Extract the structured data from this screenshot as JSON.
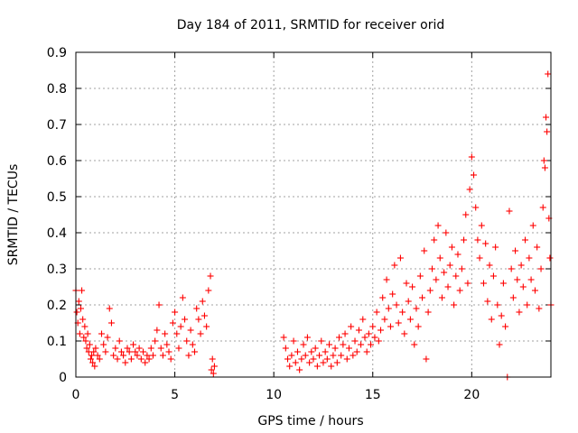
{
  "chart_data": {
    "type": "scatter",
    "title": "Day 184 of 2011, SRMTID for receiver orid",
    "xlabel": "GPS time / hours",
    "ylabel": "SRMTID / TECUs",
    "xlim": [
      0,
      24
    ],
    "ylim": [
      0,
      0.9
    ],
    "x_ticks": [
      0,
      5,
      10,
      15,
      20
    ],
    "y_ticks": [
      0,
      0.1,
      0.2,
      0.3,
      0.4,
      0.5,
      0.6,
      0.7,
      0.8,
      0.9
    ],
    "x_tick_labels": [
      "0",
      "5",
      "10",
      "15",
      "20"
    ],
    "y_tick_labels": [
      "0",
      "0.1",
      "0.2",
      "0.3",
      "0.4",
      "0.5",
      "0.6",
      "0.7",
      "0.8",
      "0.9"
    ],
    "grid": true,
    "marker": "+",
    "color": "#ff0000",
    "series": [
      {
        "name": "SRMTID",
        "points": [
          [
            0.0,
            0.24
          ],
          [
            0.05,
            0.18
          ],
          [
            0.1,
            0.15
          ],
          [
            0.15,
            0.21
          ],
          [
            0.2,
            0.12
          ],
          [
            0.25,
            0.19
          ],
          [
            0.3,
            0.24
          ],
          [
            0.35,
            0.16
          ],
          [
            0.4,
            0.11
          ],
          [
            0.45,
            0.14
          ],
          [
            0.5,
            0.1
          ],
          [
            0.55,
            0.08
          ],
          [
            0.6,
            0.12
          ],
          [
            0.65,
            0.07
          ],
          [
            0.7,
            0.09
          ],
          [
            0.75,
            0.05
          ],
          [
            0.8,
            0.06
          ],
          [
            0.85,
            0.04
          ],
          [
            0.9,
            0.07
          ],
          [
            0.95,
            0.03
          ],
          [
            1.0,
            0.08
          ],
          [
            1.1,
            0.06
          ],
          [
            1.2,
            0.05
          ],
          [
            1.3,
            0.12
          ],
          [
            1.4,
            0.09
          ],
          [
            1.5,
            0.07
          ],
          [
            1.6,
            0.11
          ],
          [
            1.7,
            0.19
          ],
          [
            1.8,
            0.15
          ],
          [
            1.9,
            0.06
          ],
          [
            2.0,
            0.08
          ],
          [
            2.1,
            0.05
          ],
          [
            2.2,
            0.1
          ],
          [
            2.3,
            0.07
          ],
          [
            2.4,
            0.06
          ],
          [
            2.5,
            0.04
          ],
          [
            2.6,
            0.08
          ],
          [
            2.7,
            0.07
          ],
          [
            2.8,
            0.05
          ],
          [
            2.9,
            0.09
          ],
          [
            3.0,
            0.07
          ],
          [
            3.1,
            0.06
          ],
          [
            3.2,
            0.08
          ],
          [
            3.3,
            0.05
          ],
          [
            3.4,
            0.07
          ],
          [
            3.5,
            0.04
          ],
          [
            3.6,
            0.06
          ],
          [
            3.7,
            0.05
          ],
          [
            3.8,
            0.08
          ],
          [
            3.9,
            0.06
          ],
          [
            4.0,
            0.1
          ],
          [
            4.1,
            0.13
          ],
          [
            4.2,
            0.2
          ],
          [
            4.3,
            0.08
          ],
          [
            4.4,
            0.06
          ],
          [
            4.5,
            0.12
          ],
          [
            4.6,
            0.09
          ],
          [
            4.7,
            0.07
          ],
          [
            4.8,
            0.05
          ],
          [
            4.9,
            0.15
          ],
          [
            5.0,
            0.18
          ],
          [
            5.1,
            0.12
          ],
          [
            5.2,
            0.08
          ],
          [
            5.3,
            0.14
          ],
          [
            5.4,
            0.22
          ],
          [
            5.5,
            0.16
          ],
          [
            5.6,
            0.1
          ],
          [
            5.7,
            0.06
          ],
          [
            5.8,
            0.13
          ],
          [
            5.9,
            0.09
          ],
          [
            6.0,
            0.07
          ],
          [
            6.1,
            0.19
          ],
          [
            6.2,
            0.16
          ],
          [
            6.3,
            0.12
          ],
          [
            6.4,
            0.21
          ],
          [
            6.5,
            0.17
          ],
          [
            6.6,
            0.14
          ],
          [
            6.7,
            0.24
          ],
          [
            6.8,
            0.28
          ],
          [
            6.85,
            0.02
          ],
          [
            6.9,
            0.05
          ],
          [
            6.95,
            0.01
          ],
          [
            7.0,
            0.03
          ],
          [
            10.5,
            0.11
          ],
          [
            10.6,
            0.08
          ],
          [
            10.7,
            0.05
          ],
          [
            10.8,
            0.03
          ],
          [
            10.9,
            0.06
          ],
          [
            11.0,
            0.1
          ],
          [
            11.1,
            0.04
          ],
          [
            11.2,
            0.07
          ],
          [
            11.3,
            0.02
          ],
          [
            11.4,
            0.05
          ],
          [
            11.5,
            0.09
          ],
          [
            11.6,
            0.06
          ],
          [
            11.7,
            0.11
          ],
          [
            11.8,
            0.04
          ],
          [
            11.9,
            0.07
          ],
          [
            12.0,
            0.05
          ],
          [
            12.1,
            0.08
          ],
          [
            12.2,
            0.03
          ],
          [
            12.3,
            0.06
          ],
          [
            12.4,
            0.1
          ],
          [
            12.5,
            0.04
          ],
          [
            12.6,
            0.07
          ],
          [
            12.7,
            0.05
          ],
          [
            12.8,
            0.09
          ],
          [
            12.9,
            0.03
          ],
          [
            13.0,
            0.06
          ],
          [
            13.1,
            0.08
          ],
          [
            13.2,
            0.04
          ],
          [
            13.3,
            0.11
          ],
          [
            13.4,
            0.06
          ],
          [
            13.5,
            0.09
          ],
          [
            13.6,
            0.12
          ],
          [
            13.7,
            0.05
          ],
          [
            13.8,
            0.08
          ],
          [
            13.9,
            0.14
          ],
          [
            14.0,
            0.06
          ],
          [
            14.1,
            0.1
          ],
          [
            14.2,
            0.07
          ],
          [
            14.3,
            0.13
          ],
          [
            14.4,
            0.09
          ],
          [
            14.5,
            0.16
          ],
          [
            14.6,
            0.11
          ],
          [
            14.7,
            0.07
          ],
          [
            14.8,
            0.12
          ],
          [
            14.9,
            0.09
          ],
          [
            15.0,
            0.14
          ],
          [
            15.1,
            0.11
          ],
          [
            15.2,
            0.18
          ],
          [
            15.3,
            0.1
          ],
          [
            15.4,
            0.13
          ],
          [
            15.5,
            0.22
          ],
          [
            15.6,
            0.16
          ],
          [
            15.7,
            0.27
          ],
          [
            15.8,
            0.19
          ],
          [
            15.9,
            0.14
          ],
          [
            16.0,
            0.23
          ],
          [
            16.1,
            0.31
          ],
          [
            16.2,
            0.2
          ],
          [
            16.3,
            0.15
          ],
          [
            16.4,
            0.33
          ],
          [
            16.5,
            0.18
          ],
          [
            16.6,
            0.12
          ],
          [
            16.7,
            0.26
          ],
          [
            16.8,
            0.21
          ],
          [
            16.9,
            0.16
          ],
          [
            17.0,
            0.25
          ],
          [
            17.1,
            0.09
          ],
          [
            17.2,
            0.19
          ],
          [
            17.3,
            0.14
          ],
          [
            17.4,
            0.28
          ],
          [
            17.5,
            0.22
          ],
          [
            17.6,
            0.35
          ],
          [
            17.7,
            0.05
          ],
          [
            17.8,
            0.18
          ],
          [
            17.9,
            0.24
          ],
          [
            18.0,
            0.3
          ],
          [
            18.1,
            0.38
          ],
          [
            18.2,
            0.27
          ],
          [
            18.3,
            0.42
          ],
          [
            18.4,
            0.33
          ],
          [
            18.5,
            0.22
          ],
          [
            18.6,
            0.29
          ],
          [
            18.7,
            0.4
          ],
          [
            18.8,
            0.25
          ],
          [
            18.9,
            0.31
          ],
          [
            19.0,
            0.36
          ],
          [
            19.1,
            0.2
          ],
          [
            19.2,
            0.28
          ],
          [
            19.3,
            0.34
          ],
          [
            19.4,
            0.24
          ],
          [
            19.5,
            0.3
          ],
          [
            19.6,
            0.38
          ],
          [
            19.7,
            0.45
          ],
          [
            19.8,
            0.26
          ],
          [
            19.9,
            0.52
          ],
          [
            20.0,
            0.61
          ],
          [
            20.1,
            0.56
          ],
          [
            20.2,
            0.47
          ],
          [
            20.3,
            0.38
          ],
          [
            20.4,
            0.33
          ],
          [
            20.5,
            0.42
          ],
          [
            20.6,
            0.26
          ],
          [
            20.7,
            0.37
          ],
          [
            20.8,
            0.21
          ],
          [
            20.9,
            0.31
          ],
          [
            21.0,
            0.16
          ],
          [
            21.1,
            0.28
          ],
          [
            21.2,
            0.36
          ],
          [
            21.3,
            0.2
          ],
          [
            21.4,
            0.09
          ],
          [
            21.5,
            0.17
          ],
          [
            21.6,
            0.26
          ],
          [
            21.7,
            0.14
          ],
          [
            21.8,
            0.0
          ],
          [
            21.9,
            0.46
          ],
          [
            22.0,
            0.3
          ],
          [
            22.1,
            0.22
          ],
          [
            22.2,
            0.35
          ],
          [
            22.3,
            0.27
          ],
          [
            22.4,
            0.18
          ],
          [
            22.5,
            0.31
          ],
          [
            22.6,
            0.25
          ],
          [
            22.7,
            0.38
          ],
          [
            22.8,
            0.2
          ],
          [
            22.9,
            0.33
          ],
          [
            23.0,
            0.27
          ],
          [
            23.1,
            0.42
          ],
          [
            23.2,
            0.24
          ],
          [
            23.3,
            0.36
          ],
          [
            23.4,
            0.19
          ],
          [
            23.5,
            0.3
          ],
          [
            23.6,
            0.47
          ],
          [
            23.65,
            0.6
          ],
          [
            23.7,
            0.58
          ],
          [
            23.75,
            0.72
          ],
          [
            23.8,
            0.68
          ],
          [
            23.85,
            0.84
          ],
          [
            23.9,
            0.44
          ],
          [
            23.95,
            0.33
          ],
          [
            24.0,
            0.2
          ]
        ]
      }
    ]
  }
}
